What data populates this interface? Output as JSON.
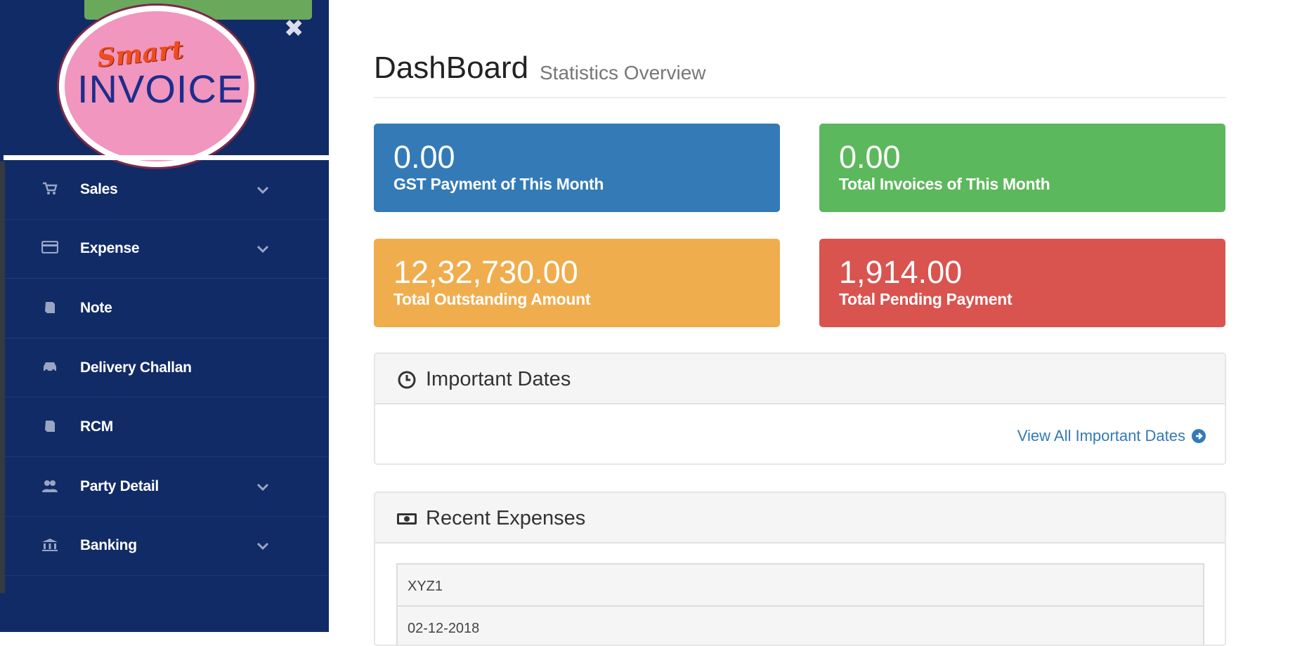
{
  "brand": {
    "script": "Smart",
    "name": "INVOICE"
  },
  "sidebar": {
    "close_icon": "close-icon",
    "items": [
      {
        "label": "Sales",
        "icon": "cart-icon",
        "expandable": true
      },
      {
        "label": "Expense",
        "icon": "credit-card-icon",
        "expandable": true
      },
      {
        "label": "Note",
        "icon": "note-icon",
        "expandable": false
      },
      {
        "label": "Delivery Challan",
        "icon": "car-icon",
        "expandable": false
      },
      {
        "label": "RCM",
        "icon": "note-icon",
        "expandable": false
      },
      {
        "label": "Party Detail",
        "icon": "users-icon",
        "expandable": true
      },
      {
        "label": "Banking",
        "icon": "bank-icon",
        "expandable": true
      }
    ]
  },
  "header": {
    "title": "DashBoard",
    "subtitle": "Statistics Overview"
  },
  "stats": [
    {
      "value": "0.00",
      "caption": "GST Payment of This Month",
      "color": "#337ab7"
    },
    {
      "value": "0.00",
      "caption": "Total Invoices of This Month",
      "color": "#5cb85c"
    },
    {
      "value": "12,32,730.00",
      "caption": "Total Outstanding Amount",
      "color": "#f0ad4e"
    },
    {
      "value": "1,914.00",
      "caption": "Total Pending Payment",
      "color": "#d9534f"
    }
  ],
  "important_dates": {
    "title": "Important Dates",
    "link": "View All Important Dates"
  },
  "recent_expenses": {
    "title": "Recent Expenses",
    "rows": [
      "XYZ1",
      "02-12-2018"
    ]
  }
}
